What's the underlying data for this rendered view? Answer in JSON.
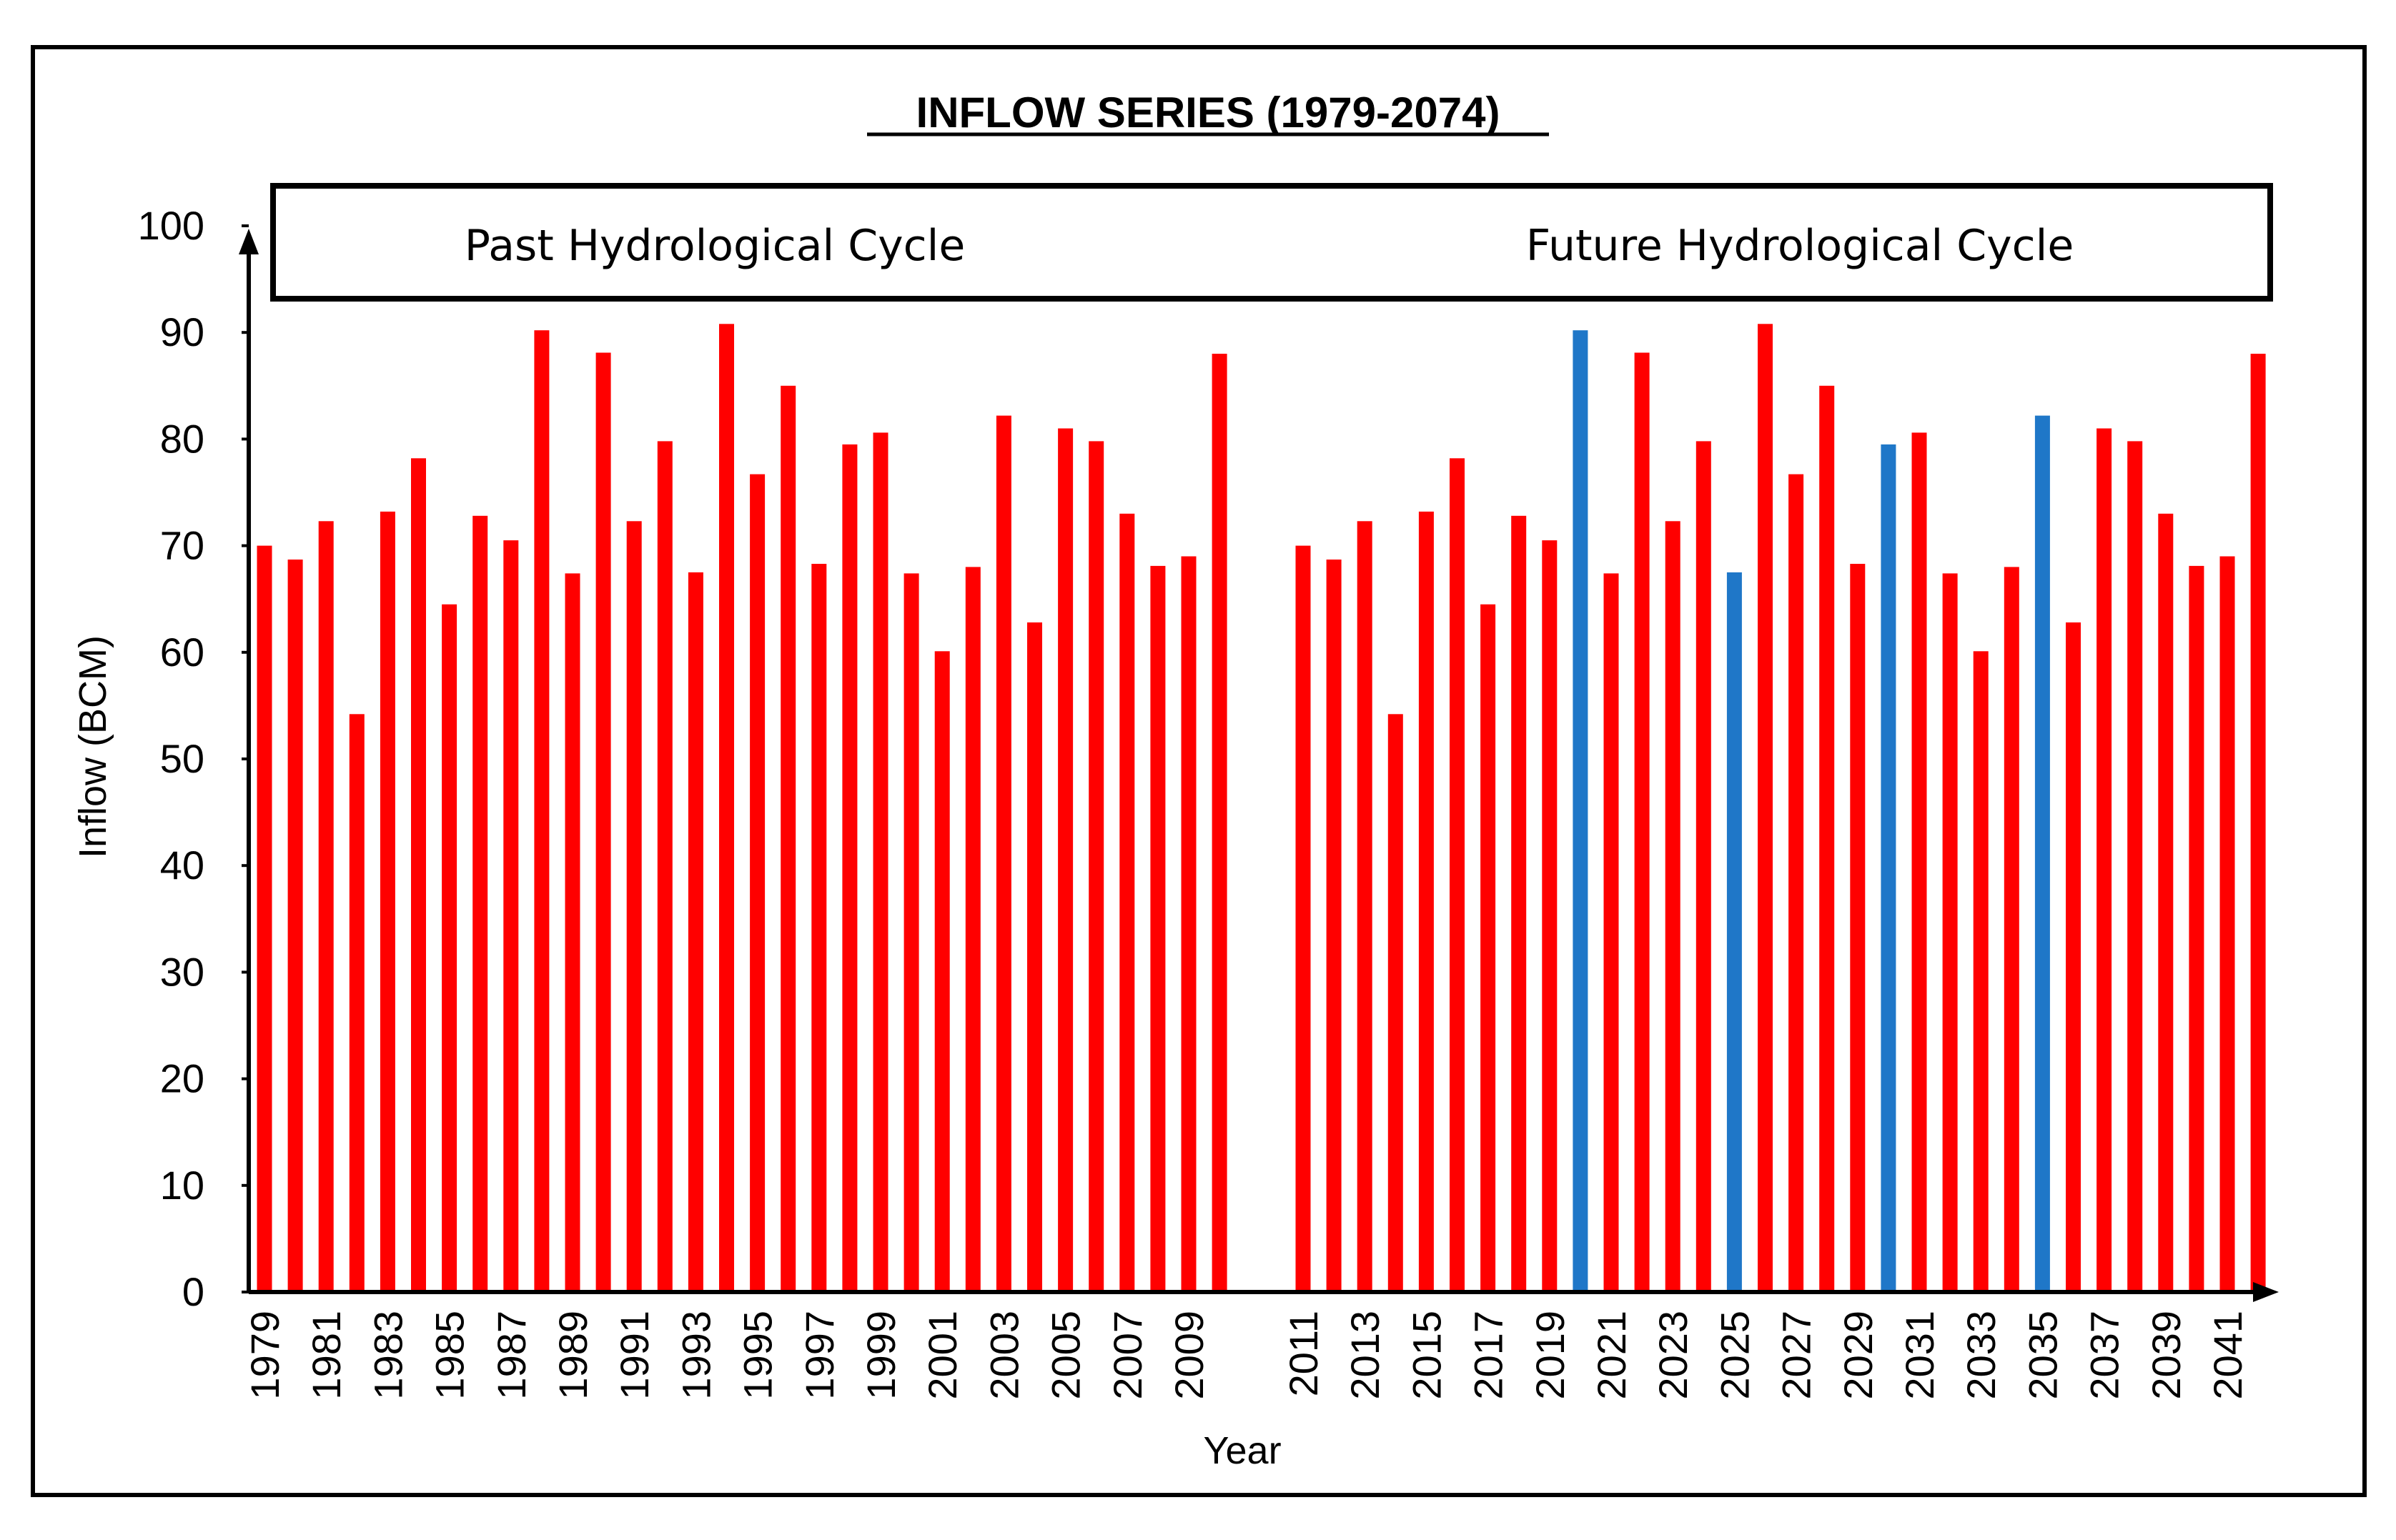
{
  "chart_data": {
    "type": "bar",
    "title": "INFLOW SERIES (1979-2074)",
    "xlabel": "Year",
    "ylabel": "Inflow  (BCM)",
    "ylim": [
      0,
      100
    ],
    "yticks": [
      0,
      10,
      20,
      30,
      40,
      50,
      60,
      70,
      80,
      90,
      100
    ],
    "regions": [
      {
        "label": "Past Hydrological Cycle"
      },
      {
        "label": "Future Hydrological Cycle"
      }
    ],
    "colors": {
      "normal": "#ff0000",
      "highlight": "#1f77c8"
    },
    "past": {
      "years": [
        1979,
        1980,
        1981,
        1982,
        1983,
        1984,
        1985,
        1986,
        1987,
        1988,
        1989,
        1990,
        1991,
        1992,
        1993,
        1994,
        1995,
        1996,
        1997,
        1998,
        1999,
        2000,
        2001,
        2002,
        2003,
        2004,
        2005,
        2006,
        2007,
        2008,
        2009,
        2010
      ],
      "values": [
        70,
        68.7,
        72.3,
        54.2,
        73.2,
        78.2,
        64.5,
        72.8,
        70.5,
        90.2,
        67.4,
        88.1,
        72.3,
        79.8,
        67.5,
        90.8,
        76.7,
        85,
        68.3,
        79.5,
        80.6,
        67.4,
        60.1,
        68,
        82.2,
        62.8,
        81,
        79.8,
        73,
        68.1,
        69,
        88
      ]
    },
    "future": {
      "years": [
        2011,
        2012,
        2013,
        2014,
        2015,
        2016,
        2017,
        2018,
        2019,
        2020,
        2021,
        2022,
        2023,
        2024,
        2025,
        2026,
        2027,
        2028,
        2029,
        2030,
        2031,
        2032,
        2033,
        2034,
        2035,
        2036,
        2037,
        2038,
        2039,
        2040,
        2041,
        2042
      ],
      "values": [
        70,
        68.7,
        72.3,
        54.2,
        73.2,
        78.2,
        64.5,
        72.8,
        70.5,
        90.2,
        67.4,
        88.1,
        72.3,
        79.8,
        67.5,
        90.8,
        76.7,
        85,
        68.3,
        79.5,
        80.6,
        67.4,
        60.1,
        68,
        82.2,
        62.8,
        81,
        79.8,
        73,
        68.1,
        69,
        88
      ],
      "highlighted_years": [
        2020,
        2025,
        2030,
        2035
      ]
    },
    "tick_labels": [
      "1979",
      "1981",
      "1983",
      "1985",
      "1987",
      "1989",
      "1991",
      "1993",
      "1995",
      "1997",
      "1999",
      "2001",
      "2003",
      "2005",
      "2007",
      "2009",
      "2011",
      "2013",
      "2015",
      "2017",
      "2019",
      "2021",
      "2023",
      "2025",
      "2027",
      "2029",
      "2031",
      "2033",
      "2035",
      "2037",
      "2039",
      "2041"
    ]
  }
}
